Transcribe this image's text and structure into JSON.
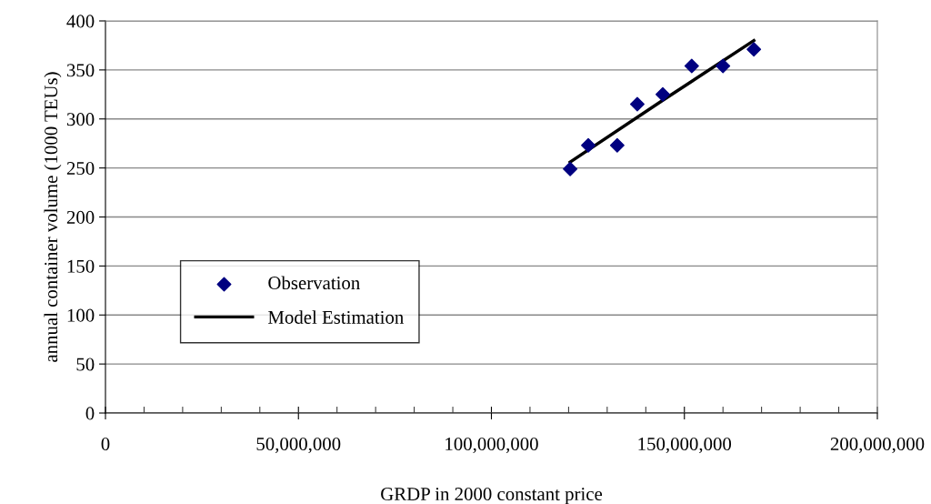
{
  "chart_data": {
    "type": "scatter",
    "xlabel": "GRDP in 2000 constant price",
    "ylabel": "annual container volume (1000 TEUs)",
    "xlim": [
      0,
      200000000
    ],
    "ylim": [
      0,
      400
    ],
    "xticks": [
      0,
      {
        "value": 50000000,
        "label": "50,000,000"
      },
      {
        "value": 100000000,
        "label": "100,000,000"
      },
      {
        "value": 150000000,
        "label": "150,000,000"
      },
      {
        "value": 200000000,
        "label": "200,000,000"
      }
    ],
    "yticks": [
      0,
      50,
      100,
      150,
      200,
      250,
      300,
      350,
      400
    ],
    "grid": "y",
    "legend": "left",
    "series": [
      {
        "name": "Observation",
        "marker": "diamond",
        "color": "#000080",
        "x": [
          120400000,
          125100000,
          132600000,
          137800000,
          144400000,
          151900000,
          160000000,
          168000000
        ],
        "values": [
          249,
          273,
          273,
          315,
          325,
          354,
          354,
          371
        ]
      },
      {
        "name": "Model Estimation",
        "type": "line",
        "marker": "none",
        "line_style": "solid",
        "color": "#000000",
        "x": [
          120400000,
          144400000,
          168000000
        ],
        "values": [
          256,
          319,
          380
        ]
      }
    ]
  }
}
